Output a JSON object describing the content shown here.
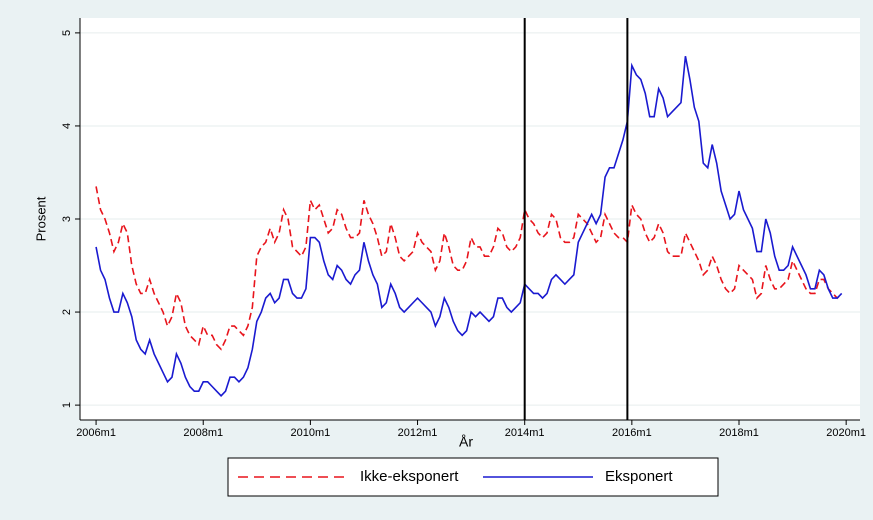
{
  "chart_data": {
    "type": "line",
    "xlabel": "År",
    "ylabel": "Prosent",
    "x": [
      552,
      553,
      554,
      555,
      556,
      557,
      558,
      559,
      560,
      561,
      562,
      563,
      564,
      565,
      566,
      567,
      568,
      569,
      570,
      571,
      572,
      573,
      574,
      575,
      576,
      577,
      578,
      579,
      580,
      581,
      582,
      583,
      584,
      585,
      586,
      587,
      588,
      589,
      590,
      591,
      592,
      593,
      594,
      595,
      596,
      597,
      598,
      599,
      600,
      601,
      602,
      603,
      604,
      605,
      606,
      607,
      608,
      609,
      610,
      611,
      612,
      613,
      614,
      615,
      616,
      617,
      618,
      619,
      620,
      621,
      622,
      623,
      624,
      625,
      626,
      627,
      628,
      629,
      630,
      631,
      632,
      633,
      634,
      635,
      636,
      637,
      638,
      639,
      640,
      641,
      642,
      643,
      644,
      645,
      646,
      647,
      648,
      649,
      650,
      651,
      652,
      653,
      654,
      655,
      656,
      657,
      658,
      659,
      660,
      661,
      662,
      663,
      664,
      665,
      666,
      667,
      668,
      669,
      670,
      671,
      672,
      673,
      674,
      675,
      676,
      677,
      678,
      679,
      680,
      681,
      682,
      683,
      684,
      685,
      686,
      687,
      688,
      689,
      690,
      691,
      692,
      693,
      694,
      695,
      696,
      697,
      698,
      699,
      700,
      701,
      702,
      703,
      704,
      705,
      706,
      707,
      708,
      709,
      710,
      711,
      712,
      713,
      714,
      715,
      716,
      717,
      718,
      719
    ],
    "series": [
      {
        "name": "Ikke-eksponert",
        "color": "#e8141c",
        "dashed": true,
        "values": [
          3.35,
          3.1,
          3.0,
          2.85,
          2.65,
          2.75,
          2.95,
          2.85,
          2.5,
          2.3,
          2.2,
          2.2,
          2.35,
          2.2,
          2.1,
          2.0,
          1.85,
          1.95,
          2.2,
          2.1,
          1.85,
          1.75,
          1.7,
          1.65,
          1.85,
          1.75,
          1.75,
          1.65,
          1.6,
          1.7,
          1.85,
          1.85,
          1.8,
          1.75,
          1.85,
          2.05,
          2.6,
          2.7,
          2.75,
          2.9,
          2.75,
          2.85,
          3.1,
          3.0,
          2.7,
          2.65,
          2.6,
          2.7,
          3.2,
          3.1,
          3.15,
          3.0,
          2.85,
          2.9,
          3.1,
          3.05,
          2.9,
          2.8,
          2.8,
          2.85,
          3.2,
          3.05,
          2.95,
          2.8,
          2.6,
          2.65,
          2.95,
          2.8,
          2.6,
          2.55,
          2.6,
          2.65,
          2.85,
          2.75,
          2.7,
          2.65,
          2.45,
          2.55,
          2.85,
          2.7,
          2.5,
          2.45,
          2.45,
          2.55,
          2.8,
          2.7,
          2.7,
          2.6,
          2.6,
          2.7,
          2.9,
          2.85,
          2.7,
          2.65,
          2.7,
          2.8,
          3.1,
          3.0,
          2.95,
          2.85,
          2.8,
          2.85,
          3.05,
          3.0,
          2.8,
          2.75,
          2.75,
          2.8,
          3.05,
          3.0,
          2.95,
          2.85,
          2.75,
          2.8,
          3.05,
          2.95,
          2.85,
          2.8,
          2.8,
          2.75,
          3.15,
          3.05,
          3.0,
          2.85,
          2.75,
          2.8,
          2.95,
          2.85,
          2.65,
          2.6,
          2.6,
          2.6,
          2.85,
          2.75,
          2.65,
          2.55,
          2.4,
          2.45,
          2.6,
          2.5,
          2.35,
          2.25,
          2.2,
          2.25,
          2.5,
          2.45,
          2.4,
          2.35,
          2.15,
          2.2,
          2.5,
          2.35,
          2.25,
          2.25,
          2.3,
          2.35,
          2.55,
          2.45,
          2.35,
          2.25,
          2.2,
          2.2,
          2.35,
          2.35,
          2.25,
          2.2,
          2.15,
          2.2
        ]
      },
      {
        "name": "Eksponert",
        "color": "#1a1ad0",
        "dashed": false,
        "values": [
          2.7,
          2.45,
          2.35,
          2.15,
          2.0,
          2.0,
          2.2,
          2.1,
          1.95,
          1.7,
          1.6,
          1.55,
          1.7,
          1.55,
          1.45,
          1.35,
          1.25,
          1.3,
          1.55,
          1.45,
          1.3,
          1.2,
          1.15,
          1.15,
          1.25,
          1.25,
          1.2,
          1.15,
          1.1,
          1.15,
          1.3,
          1.3,
          1.25,
          1.3,
          1.4,
          1.6,
          1.9,
          2.0,
          2.15,
          2.2,
          2.1,
          2.15,
          2.35,
          2.35,
          2.2,
          2.15,
          2.15,
          2.25,
          2.8,
          2.8,
          2.75,
          2.55,
          2.4,
          2.35,
          2.5,
          2.45,
          2.35,
          2.3,
          2.4,
          2.45,
          2.75,
          2.55,
          2.4,
          2.3,
          2.05,
          2.1,
          2.3,
          2.2,
          2.05,
          2.0,
          2.05,
          2.1,
          2.15,
          2.1,
          2.05,
          2.0,
          1.85,
          1.95,
          2.15,
          2.05,
          1.9,
          1.8,
          1.75,
          1.8,
          2.0,
          1.95,
          2.0,
          1.95,
          1.9,
          1.95,
          2.15,
          2.15,
          2.05,
          2.0,
          2.05,
          2.1,
          2.3,
          2.25,
          2.2,
          2.2,
          2.15,
          2.2,
          2.35,
          2.4,
          2.35,
          2.3,
          2.35,
          2.4,
          2.75,
          2.85,
          2.95,
          3.05,
          2.95,
          3.05,
          3.45,
          3.55,
          3.55,
          3.7,
          3.85,
          4.05,
          4.65,
          4.55,
          4.5,
          4.35,
          4.1,
          4.1,
          4.4,
          4.3,
          4.1,
          4.15,
          4.2,
          4.25,
          4.75,
          4.5,
          4.2,
          4.05,
          3.6,
          3.55,
          3.8,
          3.6,
          3.3,
          3.15,
          3.0,
          3.05,
          3.3,
          3.1,
          3.0,
          2.9,
          2.65,
          2.65,
          3.0,
          2.85,
          2.6,
          2.45,
          2.45,
          2.5,
          2.7,
          2.6,
          2.5,
          2.4,
          2.25,
          2.25,
          2.45,
          2.4,
          2.25,
          2.15,
          2.15,
          2.2
        ]
      }
    ],
    "xlim": [
      548.4,
      723.1
    ],
    "ylim": [
      0.84,
      5.16
    ],
    "xticks": [
      {
        "value": 552,
        "label": "2006m1"
      },
      {
        "value": 576,
        "label": "2008m1"
      },
      {
        "value": 600,
        "label": "2010m1"
      },
      {
        "value": 624,
        "label": "2012m1"
      },
      {
        "value": 648,
        "label": "2014m1"
      },
      {
        "value": 672,
        "label": "2016m1"
      },
      {
        "value": 696,
        "label": "2018m1"
      },
      {
        "value": 720,
        "label": "2020m1"
      }
    ],
    "yticks": [
      1,
      2,
      3,
      4,
      5
    ],
    "xlines": [
      648,
      671
    ],
    "grid": true
  }
}
